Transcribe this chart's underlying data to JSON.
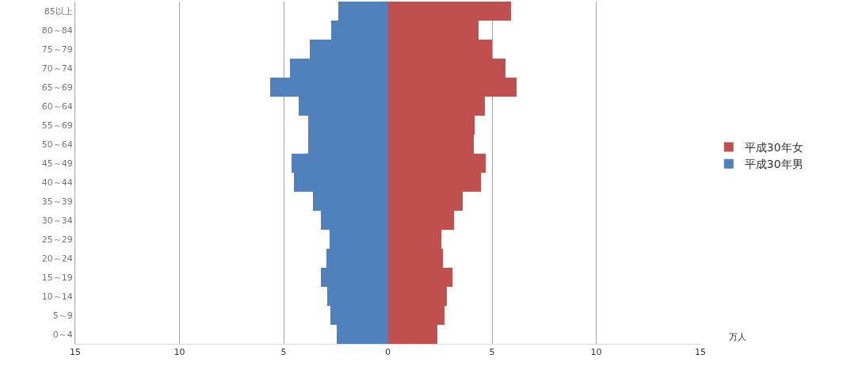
{
  "chart_data": {
    "type": "bar",
    "orientation": "horizontal",
    "xlabel": "万人",
    "categories": [
      "85以上",
      "80～84",
      "75～79",
      "70～74",
      "65～69",
      "60～64",
      "55～69",
      "50～64",
      "45～49",
      "40～44",
      "35～39",
      "30～34",
      "25～29",
      "20～24",
      "15～19",
      "10～14",
      "5～9",
      "0～4"
    ],
    "series": [
      {
        "name": "平成30年女",
        "color": "#c0504d",
        "values": [
          5.93,
          4.36,
          5.0,
          5.64,
          6.18,
          4.66,
          4.15,
          4.11,
          4.71,
          4.45,
          3.61,
          3.18,
          2.57,
          2.65,
          3.1,
          2.85,
          2.72,
          2.37
        ]
      },
      {
        "name": "平成30年男",
        "color": "#4f81bd",
        "values": [
          -2.38,
          -2.72,
          -3.74,
          -4.71,
          -5.66,
          -4.29,
          -3.84,
          -3.84,
          -4.63,
          -4.5,
          -3.61,
          -3.23,
          -2.8,
          -2.95,
          -3.21,
          -2.89,
          -2.76,
          -2.47
        ]
      }
    ],
    "xlim": [
      -15,
      15
    ],
    "xticks": [
      {
        "value": -15,
        "label": "15"
      },
      {
        "value": -10,
        "label": "10"
      },
      {
        "value": -5,
        "label": "5"
      },
      0,
      5,
      10,
      15
    ],
    "grid": "x",
    "legend": "right",
    "stacked": true
  }
}
